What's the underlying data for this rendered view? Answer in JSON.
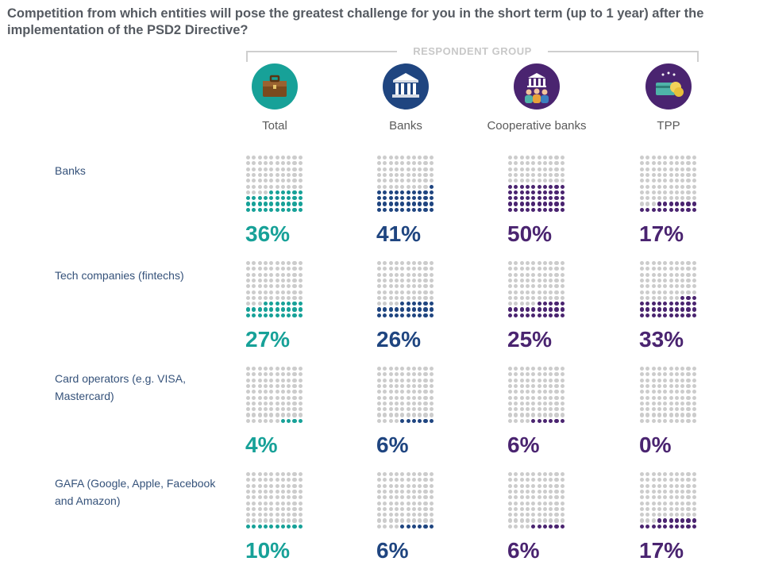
{
  "title": "Competition from which entities will pose the greatest challenge for you in the short term (up to 1 year) after the implementation of the PSD2 Directive?",
  "respondent_group_label": "RESPONDENT GROUP",
  "colors": {
    "empty_dot": "#cccccc",
    "total": "#17a198",
    "banks": "#1f4580",
    "cooperative_banks": "#4a2470",
    "tpp": "#4a2470"
  },
  "columns": [
    {
      "key": "total",
      "label": "Total",
      "icon": "briefcase-icon",
      "icon_bg": "#17a198"
    },
    {
      "key": "banks",
      "label": "Banks",
      "icon": "bank-building-icon",
      "icon_bg": "#1f4580"
    },
    {
      "key": "cooperative_banks",
      "label": "Cooperative banks",
      "icon": "cooperative-bank-people-icon",
      "icon_bg": "#4a2470"
    },
    {
      "key": "tpp",
      "label": "TPP",
      "icon": "card-coins-icon",
      "icon_bg": "#4a2470"
    }
  ],
  "chart_data": {
    "type": "table",
    "unit": "%",
    "dots_per_grid": 100,
    "categories": [
      "Banks",
      "Tech companies (fintechs)",
      "Card operators (e.g. VISA, Mastercard)",
      "GAFA (Google, Apple, Facebook and Amazon)"
    ],
    "series": [
      {
        "name": "Total",
        "values": [
          36,
          27,
          4,
          10
        ]
      },
      {
        "name": "Banks",
        "values": [
          41,
          26,
          6,
          6
        ]
      },
      {
        "name": "Cooperative banks",
        "values": [
          50,
          25,
          6,
          6
        ]
      },
      {
        "name": "TPP",
        "values": [
          17,
          33,
          0,
          17
        ]
      }
    ]
  },
  "rows": [
    {
      "label_lines": [
        "Banks"
      ]
    },
    {
      "label_lines": [
        "Tech companies (fintechs)"
      ]
    },
    {
      "label_lines": [
        "Card operators (e.g. VISA,",
        "Mastercard)"
      ]
    },
    {
      "label_lines": [
        "GAFA (Google, Apple, Facebook",
        "and Amazon)"
      ]
    }
  ]
}
